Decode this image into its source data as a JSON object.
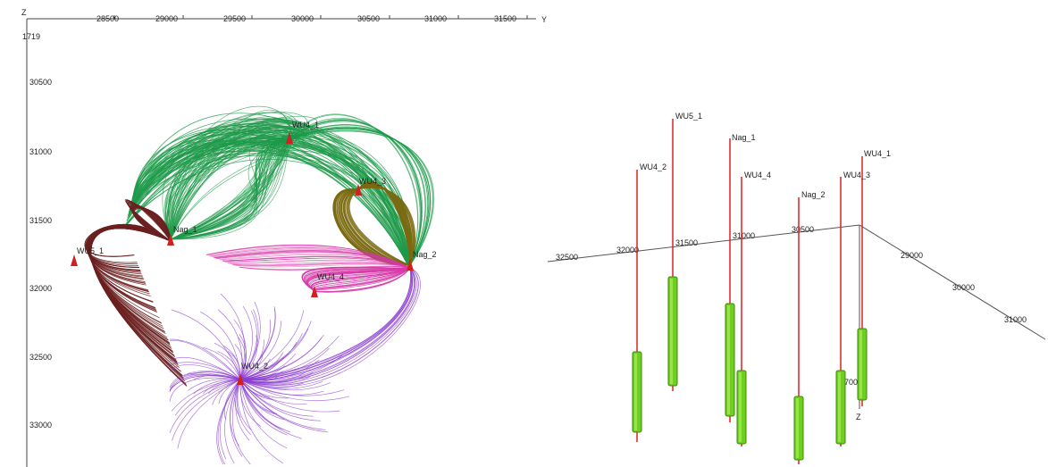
{
  "left_view": {
    "corner_label": "Z",
    "corner_value": "1719",
    "y_axis_letter": "Y",
    "top_ticks": [
      "28500",
      "29000",
      "29500",
      "30000",
      "30500",
      "31000",
      "31500"
    ],
    "left_ticks": [
      "30500",
      "31000",
      "31500",
      "32000",
      "32500",
      "33000"
    ],
    "wells": [
      "WU5_1",
      "Nag_1",
      "WU4_1",
      "WU4_3",
      "Nag_2",
      "WU4_4",
      "WU4_2"
    ],
    "colors": {
      "WU5_1": "#6b2020",
      "Nag_1": "#1e9a4a",
      "WU4_3": "#7a6a10",
      "WU4_4": "#d63aa8",
      "WU4_2": "#8a3cd0"
    }
  },
  "right_view": {
    "axis_ticks": [
      "32500",
      "32000",
      "31500",
      "31000",
      "30500",
      "29000",
      "30000",
      "31000"
    ],
    "z_value": "1700",
    "z_letter": "Z",
    "wells": [
      "WU5_1",
      "Nag_1",
      "WU4_2",
      "WU4_4",
      "Nag_2",
      "WU4_3",
      "WU4_1"
    ],
    "colors": {
      "well_line": "#e02020",
      "completion": "#6ecf1e",
      "completion_edge": "#3c8a0c"
    }
  }
}
